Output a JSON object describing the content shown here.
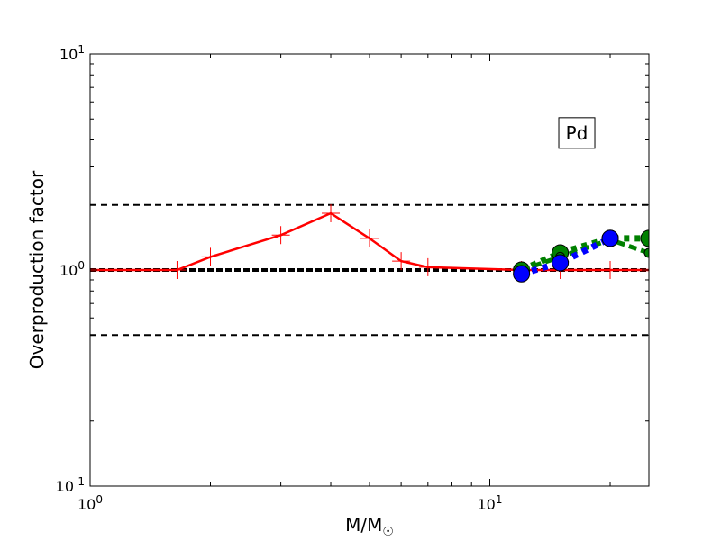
{
  "chart_data": {
    "type": "line",
    "xscale": "log",
    "yscale": "log",
    "xlim": [
      1,
      25
    ],
    "ylim": [
      0.1,
      10
    ],
    "xlabel": "M/M☉",
    "ylabel": "Overproduction factor",
    "xticks": [
      {
        "value": 1,
        "base": "10",
        "exp": "0"
      },
      {
        "value": 10,
        "base": "10",
        "exp": "1"
      }
    ],
    "yticks": [
      {
        "value": 0.1,
        "base": "10",
        "exp": "-1"
      },
      {
        "value": 1,
        "base": "10",
        "exp": "0"
      },
      {
        "value": 10,
        "base": "10",
        "exp": "1"
      }
    ],
    "annotation": "Pd",
    "reference_lines": [
      {
        "y": 2.0,
        "style": "dashed"
      },
      {
        "y": 1.0,
        "style": "dashed-bold"
      },
      {
        "y": 0.5,
        "style": "dashed"
      }
    ],
    "series": [
      {
        "color": "#ff0000",
        "style": "solid",
        "marker": "plus",
        "x": [
          1.0,
          1.65,
          2.0,
          3.0,
          4.0,
          5.0,
          6.0,
          7.0,
          12.0,
          15.0,
          20.0,
          25.0
        ],
        "y": [
          1.0,
          1.0,
          1.15,
          1.45,
          1.83,
          1.4,
          1.1,
          1.03,
          1.0,
          1.0,
          1.0,
          1.0
        ]
      },
      {
        "color": "#008000",
        "style": "dotted",
        "marker": "circle",
        "x": [
          12.0,
          15.0,
          20.0,
          25.0
        ],
        "y": [
          1.0,
          1.2,
          1.4,
          1.4
        ]
      },
      {
        "color": "#008000",
        "style": "dashed",
        "marker": "small-circle",
        "x": [
          12.0,
          15.0,
          20.0,
          25.0
        ],
        "y": [
          1.0,
          1.15,
          1.38,
          1.2
        ]
      },
      {
        "color": "#0000ff",
        "style": "dotted",
        "marker": "circle",
        "x": [
          12.0,
          15.0,
          20.0
        ],
        "y": [
          0.96,
          1.08,
          1.4
        ]
      }
    ]
  }
}
